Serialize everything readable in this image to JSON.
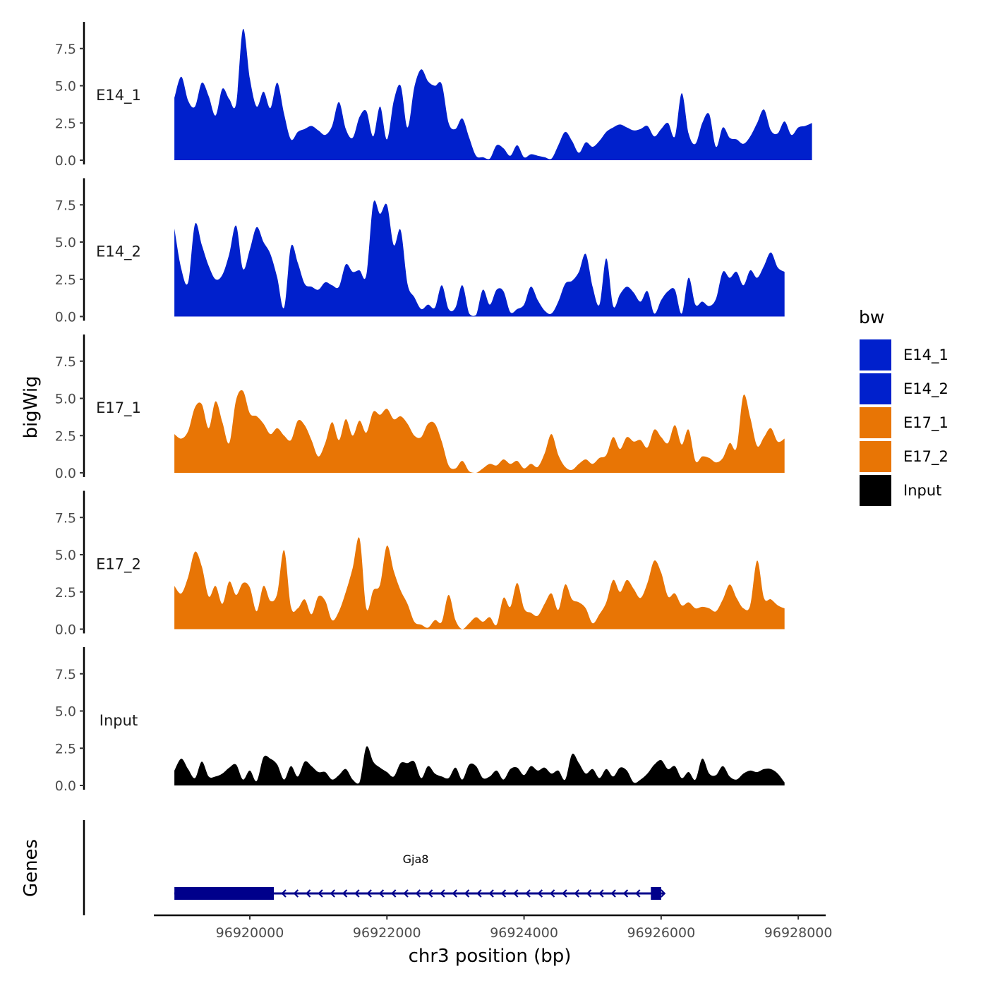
{
  "chart_data": {
    "type": "area",
    "xlabel": "chr3 position (bp)",
    "ylabel": "bigWig",
    "genes_label": "Genes",
    "xlim": [
      96918600,
      96928400
    ],
    "ylim": [
      0,
      9.3
    ],
    "x_ticks": [
      96920000,
      96922000,
      96924000,
      96926000,
      96928000
    ],
    "x_tick_labels": [
      "96920000",
      "96922000",
      "96924000",
      "96926000",
      "96928000"
    ],
    "y_ticks": [
      0,
      2.5,
      5,
      7.5
    ],
    "y_tick_labels": [
      "0.0",
      "2.5",
      "5.0",
      "7.5"
    ],
    "legend": {
      "title": "bw",
      "entries": [
        {
          "label": "E14_1",
          "color": "#0020CC"
        },
        {
          "label": "E14_2",
          "color": "#0020CC"
        },
        {
          "label": "E17_1",
          "color": "#E87505"
        },
        {
          "label": "E17_2",
          "color": "#E87505"
        },
        {
          "label": "Input",
          "color": "#000000"
        }
      ]
    },
    "series": [
      {
        "name": "E14_1",
        "color": "#0020CC",
        "x_start": 96918900,
        "x_step": 100,
        "values": [
          4.2,
          5.6,
          4.0,
          3.6,
          5.2,
          4.3,
          3.0,
          4.8,
          4.1,
          3.8,
          8.8,
          5.5,
          3.6,
          4.6,
          3.5,
          5.2,
          3.1,
          1.4,
          1.9,
          2.1,
          2.3,
          2.0,
          1.7,
          2.3,
          3.9,
          2.1,
          1.5,
          2.9,
          3.3,
          1.6,
          3.6,
          1.4,
          4.0,
          5.0,
          2.2,
          4.9,
          6.1,
          5.3,
          5.0,
          5.1,
          2.5,
          2.1,
          2.8,
          1.5,
          0.3,
          0.2,
          0.1,
          1.0,
          0.8,
          0.3,
          1.0,
          0.2,
          0.4,
          0.3,
          0.2,
          0.1,
          1.0,
          1.9,
          1.3,
          0.5,
          1.2,
          0.9,
          1.3,
          1.9,
          2.2,
          2.4,
          2.2,
          2.0,
          2.1,
          2.3,
          1.6,
          2.1,
          2.5,
          1.6,
          4.5,
          1.8,
          1.1,
          2.5,
          3.1,
          0.9,
          2.2,
          1.5,
          1.4,
          1.1,
          1.6,
          2.5,
          3.4,
          2.0,
          1.8,
          2.6,
          1.7,
          2.2,
          2.3,
          2.5
        ]
      },
      {
        "name": "E14_2",
        "color": "#0020CC",
        "x_start": 96918900,
        "x_step": 100,
        "values": [
          5.9,
          3.2,
          2.3,
          6.2,
          4.8,
          3.4,
          2.5,
          2.8,
          4.2,
          6.1,
          3.2,
          4.5,
          6.0,
          5.0,
          4.2,
          2.6,
          0.6,
          4.7,
          3.6,
          2.2,
          2.0,
          1.8,
          2.3,
          2.1,
          2.0,
          3.5,
          3.0,
          3.1,
          2.8,
          7.6,
          6.9,
          7.5,
          4.8,
          5.8,
          2.2,
          1.3,
          0.5,
          0.8,
          0.6,
          2.1,
          0.5,
          0.6,
          2.1,
          0.2,
          0.1,
          1.8,
          0.8,
          1.8,
          1.7,
          0.3,
          0.5,
          0.8,
          2.0,
          1.1,
          0.4,
          0.2,
          1.0,
          2.2,
          2.4,
          3.0,
          4.2,
          2.0,
          0.8,
          3.9,
          0.7,
          1.5,
          2.0,
          1.6,
          1.0,
          1.7,
          0.2,
          1.1,
          1.7,
          1.8,
          0.2,
          2.6,
          0.8,
          1.0,
          0.7,
          1.2,
          3.0,
          2.6,
          3.0,
          2.1,
          3.1,
          2.6,
          3.4,
          4.3,
          3.3,
          3.0
        ]
      },
      {
        "name": "E17_1",
        "color": "#E87505",
        "x_start": 96918900,
        "x_step": 100,
        "values": [
          2.6,
          2.3,
          2.8,
          4.4,
          4.6,
          3.0,
          4.8,
          3.4,
          2.0,
          4.9,
          5.5,
          4.0,
          3.8,
          3.3,
          2.6,
          3.0,
          2.5,
          2.2,
          3.5,
          3.2,
          2.2,
          1.1,
          2.0,
          3.4,
          2.2,
          3.6,
          2.5,
          3.5,
          2.7,
          4.1,
          3.9,
          4.3,
          3.6,
          3.8,
          3.3,
          2.5,
          2.4,
          3.3,
          3.3,
          2.1,
          0.5,
          0.3,
          0.8,
          0.1,
          0.0,
          0.3,
          0.6,
          0.5,
          0.9,
          0.6,
          0.8,
          0.3,
          0.6,
          0.4,
          1.3,
          2.6,
          1.2,
          0.4,
          0.2,
          0.6,
          0.9,
          0.6,
          1.0,
          1.2,
          2.4,
          1.6,
          2.4,
          2.1,
          2.2,
          1.7,
          2.9,
          2.4,
          2.0,
          3.2,
          1.9,
          2.9,
          0.8,
          1.1,
          1.0,
          0.7,
          1.0,
          2.0,
          1.7,
          5.2,
          3.7,
          1.8,
          2.4,
          3.0,
          2.1,
          2.3
        ]
      },
      {
        "name": "E17_2",
        "color": "#E87505",
        "x_start": 96918900,
        "x_step": 100,
        "values": [
          2.9,
          2.4,
          3.5,
          5.2,
          4.2,
          2.2,
          2.9,
          1.7,
          3.2,
          2.3,
          3.1,
          2.8,
          1.2,
          2.9,
          1.9,
          2.4,
          5.3,
          1.5,
          1.4,
          2.0,
          1.0,
          2.2,
          1.9,
          0.6,
          1.2,
          2.5,
          4.1,
          6.1,
          1.4,
          2.6,
          3.0,
          5.6,
          3.9,
          2.6,
          1.7,
          0.5,
          0.3,
          0.1,
          0.6,
          0.5,
          2.3,
          0.6,
          0.0,
          0.4,
          0.8,
          0.5,
          0.8,
          0.3,
          2.1,
          1.5,
          3.1,
          1.4,
          1.1,
          0.9,
          1.7,
          2.4,
          1.3,
          3.0,
          2.0,
          1.8,
          1.4,
          0.4,
          1.0,
          1.8,
          3.3,
          2.5,
          3.3,
          2.7,
          2.1,
          3.1,
          4.6,
          3.8,
          2.2,
          2.4,
          1.6,
          1.8,
          1.4,
          1.5,
          1.4,
          1.2,
          2.0,
          3.0,
          2.1,
          1.4,
          1.6,
          4.6,
          2.1,
          2.0,
          1.6,
          1.4
        ]
      },
      {
        "name": "Input",
        "color": "#000000",
        "x_start": 96918900,
        "x_step": 100,
        "values": [
          1.0,
          1.8,
          1.1,
          0.5,
          1.6,
          0.6,
          0.6,
          0.8,
          1.2,
          1.4,
          0.4,
          1.0,
          0.3,
          1.9,
          1.8,
          1.4,
          0.4,
          1.3,
          0.6,
          1.6,
          1.3,
          0.9,
          0.9,
          0.4,
          0.7,
          1.1,
          0.4,
          0.2,
          2.6,
          1.6,
          1.2,
          0.9,
          0.6,
          1.5,
          1.5,
          1.6,
          0.5,
          1.3,
          0.8,
          0.6,
          0.5,
          1.2,
          0.4,
          1.4,
          1.3,
          0.5,
          0.6,
          1.0,
          0.4,
          1.1,
          1.2,
          0.7,
          1.3,
          1.0,
          1.2,
          0.8,
          1.0,
          0.4,
          2.1,
          1.5,
          0.8,
          1.1,
          0.5,
          1.1,
          0.6,
          1.2,
          1.0,
          0.2,
          0.4,
          0.8,
          1.4,
          1.7,
          1.1,
          1.3,
          0.5,
          0.9,
          0.4,
          1.8,
          0.8,
          0.7,
          1.3,
          0.6,
          0.4,
          0.8,
          1.0,
          0.9,
          1.1,
          1.1,
          0.8,
          0.2
        ]
      }
    ],
    "genes": [
      {
        "name": "Gja8",
        "start": 96918900,
        "end": 96926050,
        "strand": "-",
        "color": "#00008B",
        "thick": [
          [
            96918900,
            96920350
          ],
          [
            96925850,
            96926000
          ]
        ]
      }
    ]
  }
}
